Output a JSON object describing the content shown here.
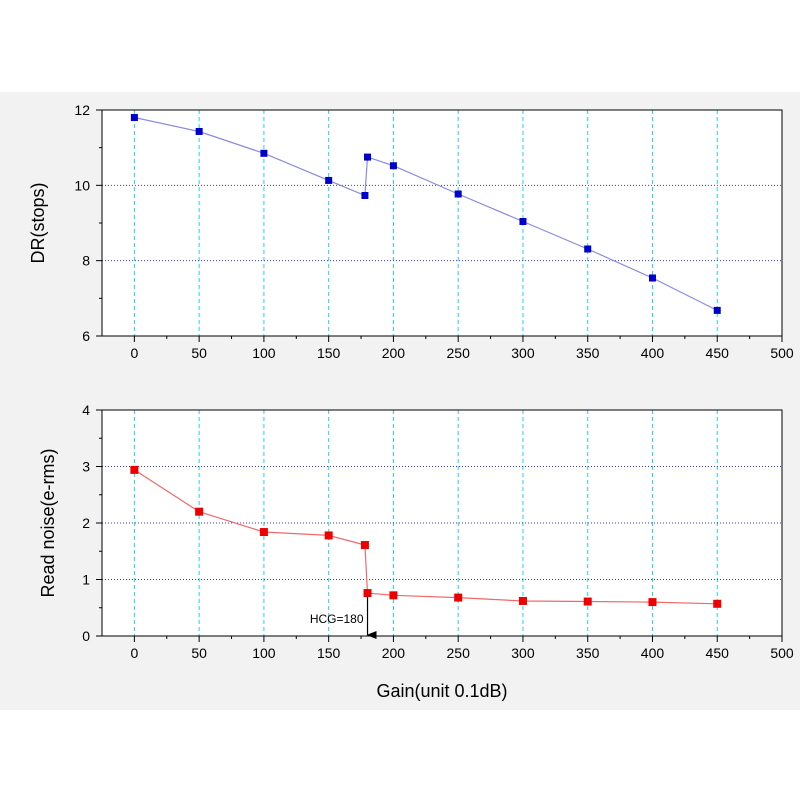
{
  "chart_data": [
    {
      "type": "line",
      "title": "",
      "xlabel": "",
      "ylabel": "DR(stops)",
      "xlim": [
        -25,
        500
      ],
      "ylim": [
        6,
        12
      ],
      "xticks": [
        0,
        50,
        100,
        150,
        200,
        250,
        300,
        350,
        400,
        450,
        500
      ],
      "yticks": [
        6,
        8,
        10,
        12
      ],
      "grid": true,
      "series": [
        {
          "color": "#0000cc",
          "line_color": "#8a8ae0",
          "marker": "square",
          "x": [
            0,
            50,
            100,
            150,
            178,
            180,
            200,
            250,
            300,
            350,
            400,
            450
          ],
          "y": [
            11.8,
            11.43,
            10.85,
            10.13,
            9.73,
            10.75,
            10.52,
            9.77,
            9.04,
            8.31,
            7.54,
            6.68
          ]
        }
      ]
    },
    {
      "type": "line",
      "title": "",
      "xlabel": "Gain(unit 0.1dB)",
      "ylabel": "Read noise(e-rms)",
      "xlim": [
        -25,
        500
      ],
      "ylim": [
        0,
        4
      ],
      "xticks": [
        0,
        50,
        100,
        150,
        200,
        250,
        300,
        350,
        400,
        450,
        500
      ],
      "yticks": [
        0,
        1,
        2,
        3,
        4
      ],
      "grid": true,
      "annotation": {
        "text": "HCG=180",
        "x": 180
      },
      "series": [
        {
          "color": "#ee0000",
          "line_color": "#ee6a6a",
          "marker": "square",
          "x": [
            0,
            50,
            100,
            150,
            178,
            180,
            200,
            250,
            300,
            350,
            400,
            450
          ],
          "y": [
            2.94,
            2.2,
            1.84,
            1.78,
            1.61,
            0.76,
            0.72,
            0.68,
            0.62,
            0.61,
            0.6,
            0.57
          ]
        }
      ]
    }
  ]
}
